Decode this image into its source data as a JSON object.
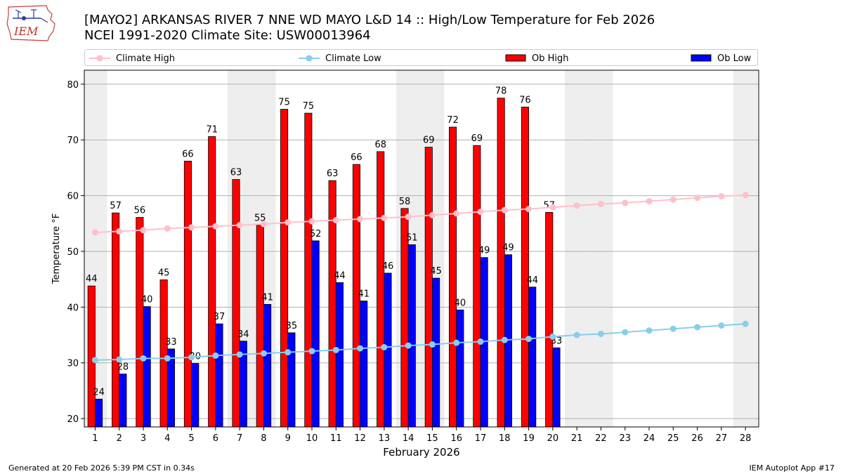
{
  "header": {
    "logo_text": "IEM",
    "title_line1": "[MAYO2] ARKANSAS RIVER 7 NNE WD MAYO L&D 14 :: High/Low Temperature for Feb 2026",
    "title_line2": "NCEI 1991-2020 Climate Site: USW00013964"
  },
  "legend": {
    "climate_high": "Climate High",
    "climate_low": "Climate Low",
    "ob_high": "Ob High",
    "ob_low": "Ob Low"
  },
  "colors": {
    "climate_high": "#ffc0cb",
    "climate_low": "#87ceeb",
    "ob_high": "#ff0000",
    "ob_low": "#0000ff",
    "weekend_shade": "#eeeeee",
    "grid": "#b0b0b0"
  },
  "footer": {
    "generated": "Generated at 20 Feb 2026 5:39 PM CST in 0.34s",
    "app": "IEM Autoplot App #17"
  },
  "chart_data": {
    "type": "bar",
    "xlabel": "February 2026",
    "ylabel": "Temperature °F",
    "ylim": [
      18.5,
      82.5
    ],
    "xlim": [
      0.55,
      28.55
    ],
    "yticks": [
      20,
      30,
      40,
      50,
      60,
      70,
      80
    ],
    "grid": "horizontal",
    "legend_position": "top",
    "days": [
      1,
      2,
      3,
      4,
      5,
      6,
      7,
      8,
      9,
      10,
      11,
      12,
      13,
      14,
      15,
      16,
      17,
      18,
      19,
      20,
      21,
      22,
      23,
      24,
      25,
      26,
      27,
      28
    ],
    "shaded_days": [
      1,
      7,
      8,
      14,
      15,
      21,
      22,
      28
    ],
    "ob_high": [
      44,
      57,
      56,
      45,
      66,
      71,
      63,
      55,
      75,
      75,
      63,
      66,
      68,
      58,
      69,
      72,
      69,
      78,
      76,
      57
    ],
    "ob_high_bar_values": [
      43.8,
      56.9,
      56.1,
      44.9,
      66.2,
      70.6,
      62.9,
      54.7,
      75.5,
      74.8,
      62.7,
      65.6,
      67.9,
      57.7,
      68.7,
      72.3,
      69.0,
      77.5,
      75.9,
      57.0
    ],
    "ob_low": [
      24,
      28,
      40,
      33,
      30,
      37,
      34,
      41,
      35,
      52,
      44,
      41,
      46,
      51,
      45,
      40,
      49,
      49,
      44,
      33
    ],
    "ob_low_bar_values": [
      23.5,
      28.0,
      40.1,
      32.5,
      29.9,
      37.0,
      33.9,
      40.5,
      35.4,
      51.9,
      44.4,
      41.1,
      46.1,
      51.2,
      45.2,
      39.5,
      48.9,
      49.4,
      43.6,
      32.7
    ],
    "climate_high": [
      53.4,
      53.6,
      53.8,
      54.1,
      54.3,
      54.5,
      54.7,
      54.9,
      55.2,
      55.4,
      55.6,
      55.8,
      56.0,
      56.2,
      56.5,
      56.8,
      57.1,
      57.4,
      57.6,
      57.9,
      58.2,
      58.5,
      58.7,
      59.0,
      59.3,
      59.6,
      59.9,
      60.1
    ],
    "climate_low": [
      30.5,
      30.6,
      30.8,
      30.8,
      31.0,
      31.3,
      31.5,
      31.7,
      31.9,
      32.1,
      32.3,
      32.6,
      32.8,
      33.1,
      33.3,
      33.6,
      33.8,
      34.1,
      34.3,
      34.7,
      35.0,
      35.2,
      35.5,
      35.8,
      36.1,
      36.4,
      36.7,
      37.0
    ]
  }
}
